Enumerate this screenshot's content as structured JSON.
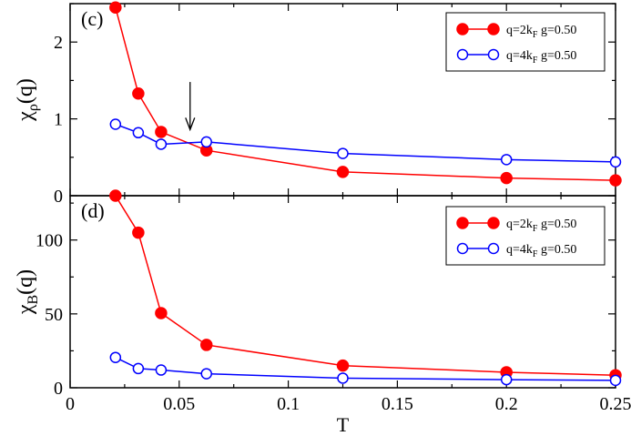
{
  "chart_data": [
    {
      "type": "line",
      "panel_label": "(c)",
      "ylabel": "χ",
      "ylabel_sub": "ρ",
      "ylabel_suffix": "(q)",
      "xlim": [
        0,
        0.25
      ],
      "ylim": [
        0,
        2.5
      ],
      "yticks": [
        {
          "value": 0,
          "label": "0"
        },
        {
          "value": 1,
          "label": "1"
        },
        {
          "value": 2,
          "label": "2"
        }
      ],
      "annotation": {
        "type": "arrow",
        "x": 0.055,
        "y_from": 1.48,
        "y_to": 0.86
      },
      "series": [
        {
          "name": "q=2k_F g=0.50",
          "name_text": "q=2k",
          "name_sub": "F",
          "name_suffix": " g=0.50",
          "color": "#ff0000",
          "marker": "filled-circle",
          "x": [
            0.0208,
            0.03125,
            0.0417,
            0.0625,
            0.125,
            0.2,
            0.25
          ],
          "y": [
            2.45,
            1.33,
            0.83,
            0.59,
            0.31,
            0.23,
            0.2
          ]
        },
        {
          "name": "q=4k_F g=0.50",
          "name_text": "q=4k",
          "name_sub": "F",
          "name_suffix": " g=0.50",
          "color": "#0000ff",
          "marker": "open-circle",
          "x": [
            0.0208,
            0.03125,
            0.0417,
            0.0625,
            0.125,
            0.2,
            0.25
          ],
          "y": [
            0.93,
            0.82,
            0.67,
            0.7,
            0.55,
            0.47,
            0.44
          ]
        }
      ]
    },
    {
      "type": "line",
      "panel_label": "(d)",
      "ylabel": "χ",
      "ylabel_sub": "B",
      "ylabel_suffix": "(q)",
      "xlabel": "T",
      "xlim": [
        0,
        0.25
      ],
      "ylim": [
        0,
        130
      ],
      "xticks": [
        {
          "value": 0,
          "label": "0"
        },
        {
          "value": 0.05,
          "label": "0.05"
        },
        {
          "value": 0.1,
          "label": "0.1"
        },
        {
          "value": 0.15,
          "label": "0.15"
        },
        {
          "value": 0.2,
          "label": "0.2"
        },
        {
          "value": 0.25,
          "label": "0.25"
        }
      ],
      "yticks": [
        {
          "value": 0,
          "label": "0"
        },
        {
          "value": 50,
          "label": "50"
        },
        {
          "value": 100,
          "label": "100"
        }
      ],
      "series": [
        {
          "name": "q=2k_F g=0.50",
          "name_text": "q=2k",
          "name_sub": "F",
          "name_suffix": " g=0.50",
          "color": "#ff0000",
          "marker": "filled-circle",
          "x": [
            0.0208,
            0.03125,
            0.0417,
            0.0625,
            0.125,
            0.2,
            0.25
          ],
          "y": [
            130,
            105,
            50.5,
            29,
            15,
            10.5,
            8.5
          ]
        },
        {
          "name": "q=4k_F g=0.50",
          "name_text": "q=4k",
          "name_sub": "F",
          "name_suffix": " g=0.50",
          "color": "#0000ff",
          "marker": "open-circle",
          "x": [
            0.0208,
            0.03125,
            0.0417,
            0.0625,
            0.125,
            0.2,
            0.25
          ],
          "y": [
            20.5,
            13,
            12,
            9.5,
            6.5,
            5.5,
            5
          ]
        }
      ]
    }
  ]
}
